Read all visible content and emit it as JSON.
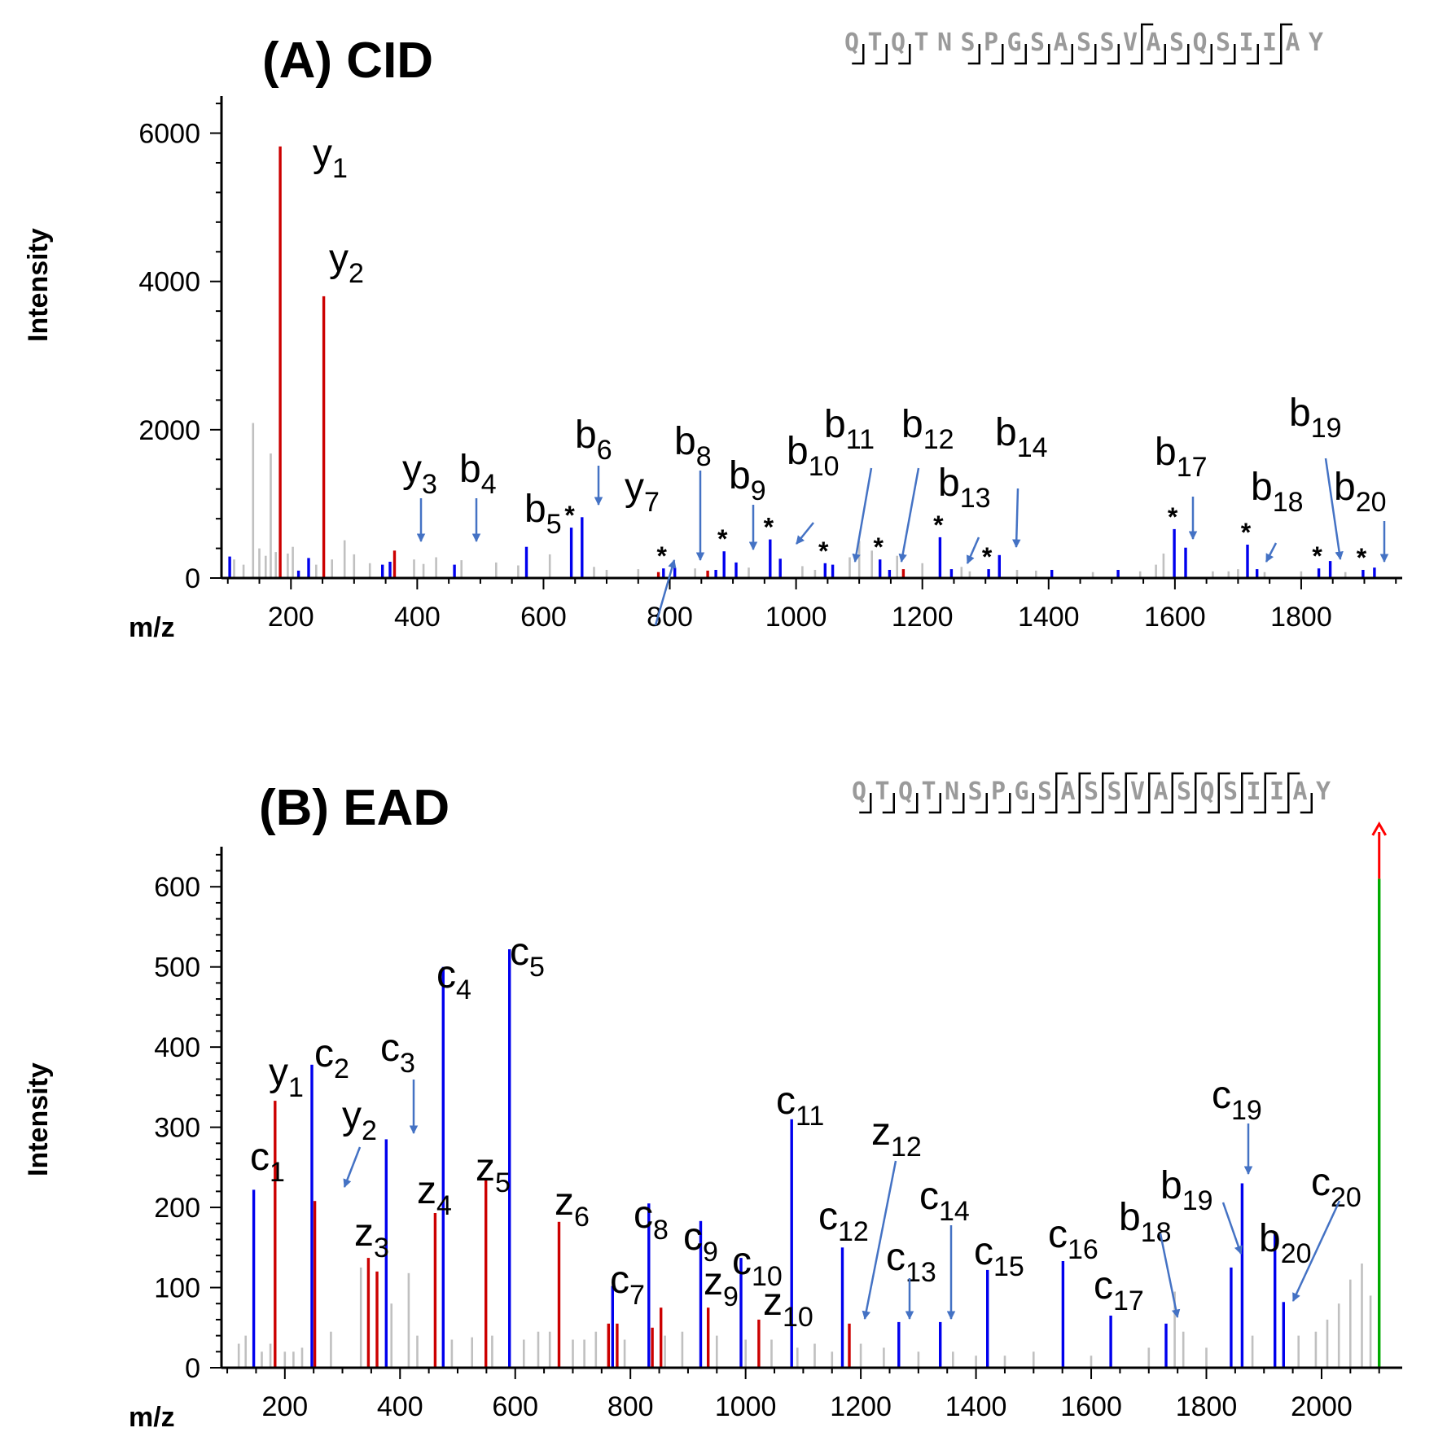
{
  "chart_data": [
    {
      "type": "bar",
      "title": "(A) CID",
      "xlabel": "m/z",
      "ylabel": "Intensity",
      "xlim": [
        90,
        1960
      ],
      "ylim": [
        0,
        6500
      ],
      "xticks": [
        200,
        400,
        600,
        800,
        1000,
        1200,
        1400,
        1600,
        1800
      ],
      "yticks": [
        0,
        2000,
        4000,
        6000
      ],
      "sequence": [
        "Q",
        "T",
        "Q",
        "T",
        "N",
        "S",
        "P",
        "G",
        "S",
        "A",
        "S",
        "S",
        "V",
        "A",
        "S",
        "Q",
        "S",
        "I",
        "I",
        "A",
        "Y"
      ],
      "sequence_top_brackets": [
        13,
        19
      ],
      "sequence_bottom_brackets": [
        1,
        2,
        3,
        6,
        7,
        8,
        9,
        10,
        11,
        12,
        13,
        14,
        15,
        16,
        17,
        18,
        19
      ],
      "series": [
        {
          "color": "#cc0000",
          "points": [
            [
              183,
              5820
            ],
            [
              252,
              3800
            ],
            [
              364,
              370
            ],
            [
              782,
              80
            ],
            [
              860,
              100
            ],
            [
              1170,
              120
            ]
          ]
        },
        {
          "color": "#0000ee",
          "points": [
            [
              103,
              290
            ],
            [
              212,
              100
            ],
            [
              228,
              270
            ],
            [
              345,
              180
            ],
            [
              357,
              220
            ],
            [
              459,
              180
            ],
            [
              573,
              420
            ],
            [
              644,
              680
            ],
            [
              661,
              820
            ],
            [
              790,
              130
            ],
            [
              808,
              140
            ],
            [
              873,
              110
            ],
            [
              886,
              360
            ],
            [
              905,
              210
            ],
            [
              959,
              520
            ],
            [
              975,
              260
            ],
            [
              1046,
              200
            ],
            [
              1058,
              180
            ],
            [
              1133,
              250
            ],
            [
              1148,
              110
            ],
            [
              1228,
              550
            ],
            [
              1246,
              120
            ],
            [
              1305,
              120
            ],
            [
              1322,
              310
            ],
            [
              1405,
              110
            ],
            [
              1510,
              110
            ],
            [
              1599,
              660
            ],
            [
              1617,
              410
            ],
            [
              1715,
              450
            ],
            [
              1730,
              120
            ],
            [
              1828,
              130
            ],
            [
              1846,
              230
            ],
            [
              1898,
              110
            ],
            [
              1916,
              140
            ]
          ]
        },
        {
          "color": "#c0c0c0",
          "points": [
            [
              110,
              250
            ],
            [
              125,
              180
            ],
            [
              140,
              2090
            ],
            [
              150,
              400
            ],
            [
              160,
              300
            ],
            [
              168,
              1680
            ],
            [
              176,
              350
            ],
            [
              195,
              330
            ],
            [
              203,
              420
            ],
            [
              240,
              180
            ],
            [
              265,
              250
            ],
            [
              285,
              510
            ],
            [
              300,
              320
            ],
            [
              325,
              200
            ],
            [
              395,
              250
            ],
            [
              410,
              190
            ],
            [
              430,
              280
            ],
            [
              470,
              240
            ],
            [
              525,
              210
            ],
            [
              560,
              170
            ],
            [
              610,
              320
            ],
            [
              680,
              150
            ],
            [
              700,
              110
            ],
            [
              750,
              120
            ],
            [
              840,
              130
            ],
            [
              925,
              140
            ],
            [
              1010,
              160
            ],
            [
              1030,
              110
            ],
            [
              1085,
              280
            ],
            [
              1100,
              500
            ],
            [
              1120,
              370
            ],
            [
              1160,
              300
            ],
            [
              1200,
              200
            ],
            [
              1262,
              150
            ],
            [
              1275,
              90
            ],
            [
              1350,
              110
            ],
            [
              1380,
              100
            ],
            [
              1470,
              80
            ],
            [
              1545,
              90
            ],
            [
              1570,
              180
            ],
            [
              1582,
              330
            ],
            [
              1660,
              90
            ],
            [
              1685,
              90
            ],
            [
              1700,
              120
            ],
            [
              1742,
              80
            ],
            [
              1800,
              90
            ],
            [
              1870,
              80
            ]
          ]
        }
      ],
      "annotations": [
        {
          "ion": "y",
          "sub": "1"
        },
        {
          "ion": "y",
          "sub": "2"
        },
        {
          "ion": "y",
          "sub": "3"
        },
        {
          "ion": "b",
          "sub": "4"
        },
        {
          "ion": "b",
          "sub": "5"
        },
        {
          "ion": "b",
          "sub": "6"
        },
        {
          "ion": "y",
          "sub": "7"
        },
        {
          "ion": "b",
          "sub": "8"
        },
        {
          "ion": "b",
          "sub": "9"
        },
        {
          "ion": "b",
          "sub": "10"
        },
        {
          "ion": "b",
          "sub": "11"
        },
        {
          "ion": "b",
          "sub": "12"
        },
        {
          "ion": "b",
          "sub": "13"
        },
        {
          "ion": "b",
          "sub": "14"
        },
        {
          "ion": "b",
          "sub": "17"
        },
        {
          "ion": "b",
          "sub": "18"
        },
        {
          "ion": "b",
          "sub": "19"
        },
        {
          "ion": "b",
          "sub": "20"
        }
      ],
      "star_mark": "*",
      "star_mz": [
        644,
        790,
        886,
        959,
        1046,
        1133,
        1228,
        1305,
        1599,
        1715,
        1828,
        1898
      ]
    },
    {
      "type": "bar",
      "title": "(B) EAD",
      "xlabel": "m/z",
      "ylabel": "Intensity",
      "xlim": [
        90,
        2140
      ],
      "ylim": [
        0,
        650
      ],
      "xticks": [
        200,
        400,
        600,
        800,
        1000,
        1200,
        1400,
        1600,
        1800,
        2000
      ],
      "yticks": [
        0,
        100,
        200,
        300,
        400,
        500,
        600
      ],
      "sequence": [
        "Q",
        "T",
        "Q",
        "T",
        "N",
        "S",
        "P",
        "G",
        "S",
        "A",
        "S",
        "S",
        "V",
        "A",
        "S",
        "Q",
        "S",
        "I",
        "I",
        "A",
        "Y"
      ],
      "sequence_top_brackets": [
        9,
        10,
        11,
        12,
        13,
        14,
        15,
        16,
        17,
        18,
        19
      ],
      "sequence_bottom_brackets": [
        1,
        2,
        3,
        4,
        5,
        6,
        7,
        8,
        9,
        10,
        11,
        12,
        13,
        14,
        15,
        16,
        17,
        18,
        19,
        20
      ],
      "series": [
        {
          "color": "#cc0000",
          "points": [
            [
              183,
              333
            ],
            [
              252,
              208
            ],
            [
              345,
              137
            ],
            [
              360,
              120
            ],
            [
              461,
              193
            ],
            [
              549,
              235
            ],
            [
              676,
              182
            ],
            [
              762,
              55
            ],
            [
              777,
              55
            ],
            [
              838,
              50
            ],
            [
              853,
              75
            ],
            [
              935,
              75
            ],
            [
              1023,
              60
            ],
            [
              1180,
              55
            ]
          ]
        },
        {
          "color": "#0000ee",
          "points": [
            [
              146,
              222
            ],
            [
              247,
              378
            ],
            [
              376,
              285
            ],
            [
              475,
              500
            ],
            [
              590,
              522
            ],
            [
              769,
              102
            ],
            [
              832,
              205
            ],
            [
              922,
              183
            ],
            [
              992,
              137
            ],
            [
              1080,
              310
            ],
            [
              1168,
              150
            ],
            [
              1266,
              57
            ],
            [
              1338,
              57
            ],
            [
              1420,
              122
            ],
            [
              1551,
              133
            ],
            [
              1634,
              65
            ],
            [
              1730,
              55
            ],
            [
              1843,
              125
            ],
            [
              1862,
              230
            ],
            [
              1919,
              168
            ],
            [
              1934,
              82
            ]
          ]
        },
        {
          "color": "#00aa00",
          "points": [
            [
              2100,
              610
            ]
          ]
        },
        {
          "color": "#c0c0c0",
          "points": [
            [
              120,
              30
            ],
            [
              132,
              40
            ],
            [
              160,
              20
            ],
            [
              175,
              30
            ],
            [
              200,
              20
            ],
            [
              215,
              20
            ],
            [
              230,
              25
            ],
            [
              280,
              45
            ],
            [
              332,
              125
            ],
            [
              345,
              95
            ],
            [
              360,
              100
            ],
            [
              385,
              80
            ],
            [
              415,
              118
            ],
            [
              430,
              40
            ],
            [
              490,
              35
            ],
            [
              525,
              38
            ],
            [
              560,
              40
            ],
            [
              615,
              35
            ],
            [
              640,
              45
            ],
            [
              660,
              45
            ],
            [
              700,
              35
            ],
            [
              720,
              35
            ],
            [
              740,
              45
            ],
            [
              790,
              35
            ],
            [
              860,
              40
            ],
            [
              890,
              45
            ],
            [
              950,
              40
            ],
            [
              1000,
              35
            ],
            [
              1045,
              35
            ],
            [
              1090,
              25
            ],
            [
              1120,
              30
            ],
            [
              1150,
              20
            ],
            [
              1200,
              30
            ],
            [
              1240,
              25
            ],
            [
              1300,
              20
            ],
            [
              1360,
              20
            ],
            [
              1400,
              15
            ],
            [
              1450,
              15
            ],
            [
              1500,
              20
            ],
            [
              1600,
              15
            ],
            [
              1700,
              25
            ],
            [
              1745,
              95
            ],
            [
              1760,
              45
            ],
            [
              1800,
              25
            ],
            [
              1880,
              40
            ],
            [
              1960,
              40
            ],
            [
              1990,
              45
            ],
            [
              2010,
              60
            ],
            [
              2030,
              80
            ],
            [
              2050,
              110
            ],
            [
              2070,
              130
            ],
            [
              2085,
              90
            ]
          ]
        }
      ],
      "overflow_arrow_color": "#ff0000",
      "annotations": [
        {
          "ion": "c",
          "sub": "1"
        },
        {
          "ion": "y",
          "sub": "1"
        },
        {
          "ion": "c",
          "sub": "2"
        },
        {
          "ion": "y",
          "sub": "2"
        },
        {
          "ion": "c",
          "sub": "3"
        },
        {
          "ion": "z",
          "sub": "3"
        },
        {
          "ion": "c",
          "sub": "4"
        },
        {
          "ion": "z",
          "sub": "4"
        },
        {
          "ion": "c",
          "sub": "5"
        },
        {
          "ion": "z",
          "sub": "5"
        },
        {
          "ion": "z",
          "sub": "6"
        },
        {
          "ion": "c",
          "sub": "7"
        },
        {
          "ion": "c",
          "sub": "8"
        },
        {
          "ion": "c",
          "sub": "9"
        },
        {
          "ion": "z",
          "sub": "9"
        },
        {
          "ion": "c",
          "sub": "10"
        },
        {
          "ion": "z",
          "sub": "10"
        },
        {
          "ion": "c",
          "sub": "11"
        },
        {
          "ion": "c",
          "sub": "12"
        },
        {
          "ion": "z",
          "sub": "12"
        },
        {
          "ion": "c",
          "sub": "13"
        },
        {
          "ion": "c",
          "sub": "14"
        },
        {
          "ion": "c",
          "sub": "15"
        },
        {
          "ion": "c",
          "sub": "16"
        },
        {
          "ion": "c",
          "sub": "17"
        },
        {
          "ion": "b",
          "sub": "18"
        },
        {
          "ion": "b",
          "sub": "19"
        },
        {
          "ion": "c",
          "sub": "19"
        },
        {
          "ion": "b",
          "sub": "20"
        },
        {
          "ion": "c",
          "sub": "20"
        }
      ]
    }
  ],
  "colors": {
    "y_ion": "#cc0000",
    "bc_ion": "#0000ee",
    "precursor": "#00aa00",
    "unassigned": "#c0c0c0",
    "arrow": "#4472c4"
  }
}
